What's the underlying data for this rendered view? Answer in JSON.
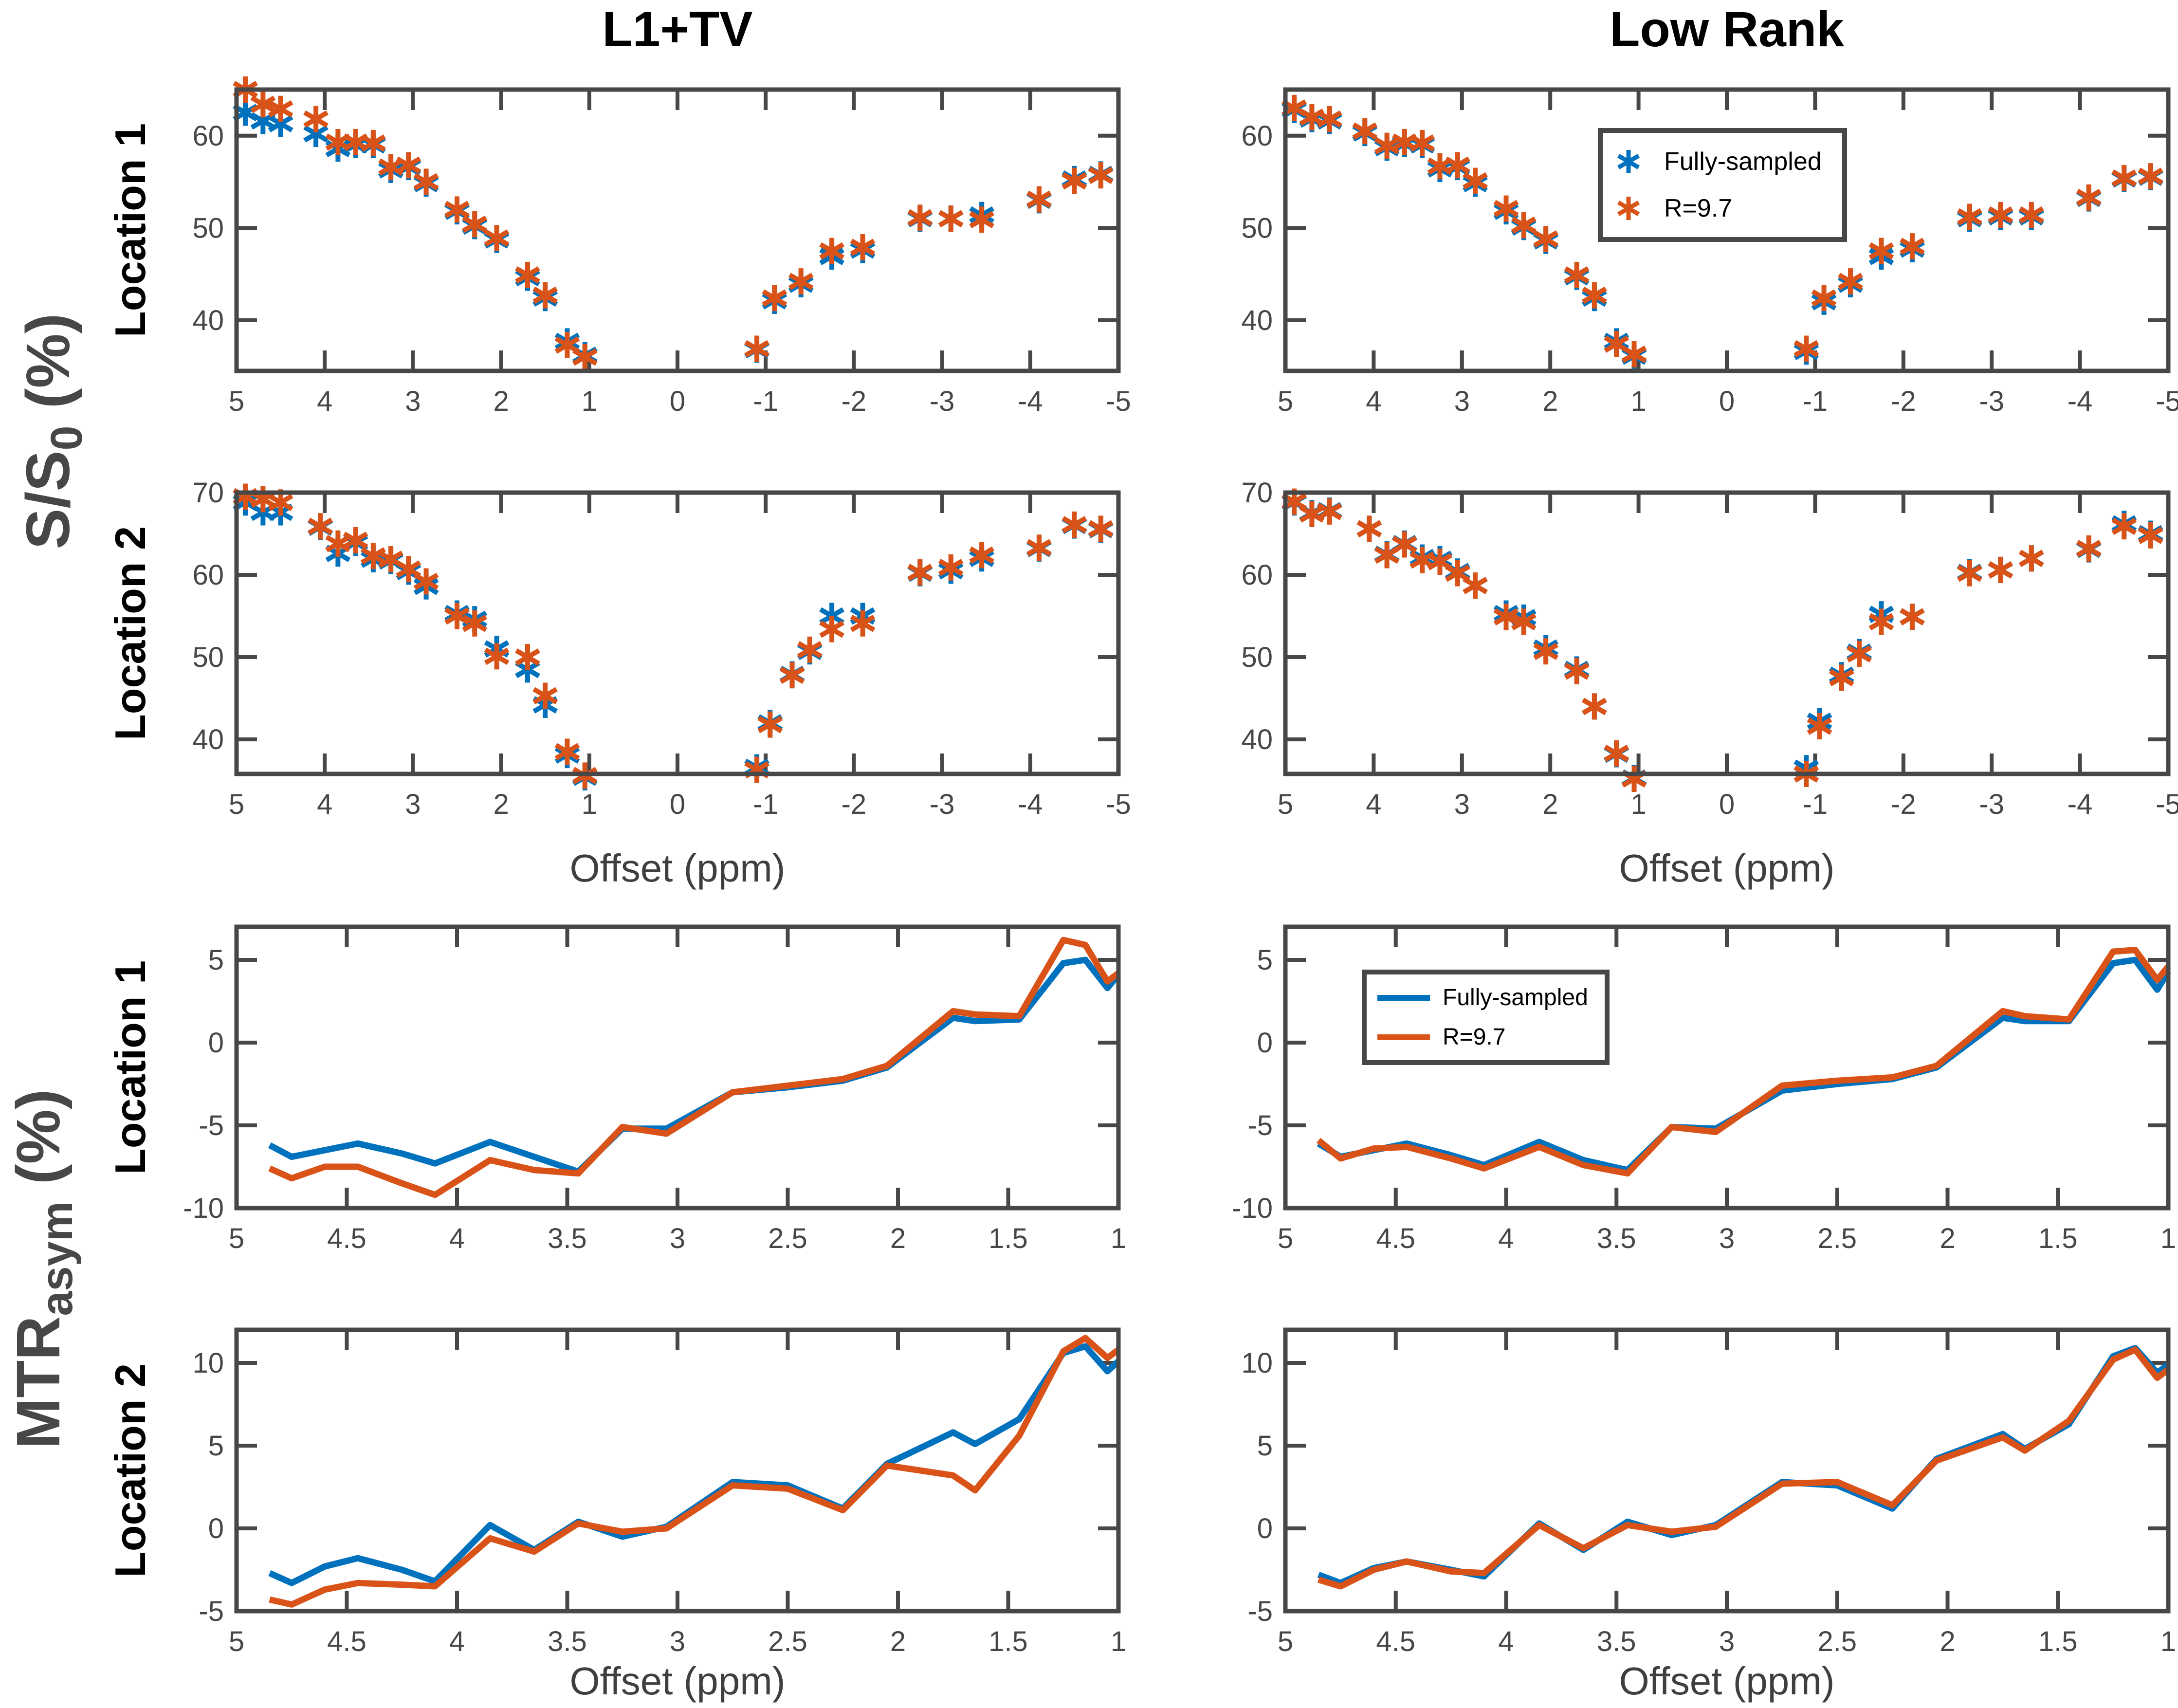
{
  "titles": {
    "left": "L1+TV",
    "right": "Low Rank"
  },
  "row_labels": {
    "loc1": "Location 1",
    "loc2": "Location 2"
  },
  "group_labels": {
    "signal": {
      "pre": "S/S",
      "sub": "0",
      "post": " (%)"
    },
    "mtr": {
      "pre": "MTR",
      "sub": "asym",
      "post": " (%)"
    }
  },
  "xlabel": "Offset (ppm)",
  "legend": {
    "items": [
      {
        "label": "Fully-sampled",
        "color": "blue"
      },
      {
        "label": "R=9.7",
        "color": "orange"
      }
    ]
  },
  "colors": {
    "blue": "#0072BD",
    "orange": "#D95319",
    "axis": "#474747",
    "text": "#000000",
    "background": "#FFFFFF"
  },
  "chart_data": [
    {
      "id": "zspec-l1tv-loc1",
      "panel": "L1+TV",
      "location": "Location 1",
      "type": "scatter",
      "ylabel": "S/S0 (%)",
      "xlim": [
        5,
        -5
      ],
      "ylim": [
        34.5,
        65
      ],
      "xticks": [
        5,
        4,
        3,
        2,
        1,
        0,
        -1,
        -2,
        -3,
        -4,
        -5
      ],
      "xtick_labels": [
        "5",
        "4",
        "3",
        "2",
        "1",
        "0",
        "-1",
        "-2",
        "-3",
        "-4",
        "-5"
      ],
      "yticks": [
        40,
        50,
        60
      ],
      "ytick_labels": [
        "40",
        "50",
        "60"
      ],
      "x": [
        4.9,
        4.7,
        4.5,
        4.1,
        3.85,
        3.65,
        3.45,
        3.25,
        3.05,
        2.85,
        2.5,
        2.3,
        2.05,
        1.7,
        1.5,
        1.25,
        1.05,
        -0.9,
        -1.1,
        -1.4,
        -1.75,
        -2.1,
        -2.75,
        -3.1,
        -3.45,
        -4.1,
        -4.5,
        -4.8
      ],
      "series": [
        {
          "name": "Fully-sampled",
          "color": "blue",
          "values": [
            62.5,
            61.6,
            61.3,
            60.2,
            58.6,
            59.0,
            59.0,
            56.3,
            56.6,
            54.8,
            51.8,
            50.2,
            48.7,
            44.6,
            42.4,
            37.7,
            36.2,
            36.8,
            42.1,
            43.9,
            46.9,
            47.6,
            51.0,
            51.0,
            51.4,
            53.0,
            55.3,
            55.8
          ]
        },
        {
          "name": "R=9.7",
          "color": "orange",
          "values": [
            65.0,
            63.4,
            62.9,
            61.8,
            59.3,
            59.3,
            59.2,
            56.6,
            56.8,
            55.0,
            52.0,
            50.4,
            48.9,
            44.9,
            42.7,
            37.3,
            36.0,
            36.9,
            42.4,
            44.2,
            47.5,
            47.9,
            51.1,
            51.0,
            50.9,
            53.1,
            55.1,
            55.7
          ]
        }
      ]
    },
    {
      "id": "zspec-lowrank-loc1",
      "panel": "Low Rank",
      "location": "Location 1",
      "type": "scatter",
      "ylabel": "S/S0 (%)",
      "xlim": [
        5,
        -5
      ],
      "ylim": [
        34.5,
        65
      ],
      "xticks": [
        5,
        4,
        3,
        2,
        1,
        0,
        -1,
        -2,
        -3,
        -4,
        -5
      ],
      "xtick_labels": [
        "5",
        "4",
        "3",
        "2",
        "1",
        "0",
        "-1",
        "-2",
        "-3",
        "-4",
        "-5"
      ],
      "yticks": [
        40,
        50,
        60
      ],
      "ytick_labels": [
        "40",
        "50",
        "60"
      ],
      "x": [
        4.9,
        4.7,
        4.5,
        4.1,
        3.85,
        3.65,
        3.45,
        3.25,
        3.05,
        2.85,
        2.5,
        2.3,
        2.05,
        1.7,
        1.5,
        1.25,
        1.05,
        -0.9,
        -1.1,
        -1.4,
        -1.75,
        -2.1,
        -2.75,
        -3.1,
        -3.45,
        -4.1,
        -4.5,
        -4.8
      ],
      "series": [
        {
          "name": "Fully-sampled",
          "color": "blue",
          "values": [
            62.8,
            61.8,
            61.6,
            60.3,
            58.7,
            59.1,
            59.0,
            56.4,
            56.6,
            54.8,
            51.8,
            50.1,
            48.6,
            44.7,
            42.4,
            37.7,
            36.1,
            36.6,
            42.0,
            43.9,
            46.9,
            47.7,
            51.0,
            51.2,
            51.2,
            53.2,
            55.3,
            55.5
          ]
        },
        {
          "name": "R=9.7",
          "color": "orange",
          "values": [
            63.0,
            62.0,
            61.8,
            60.5,
            58.9,
            59.3,
            59.2,
            56.7,
            56.8,
            55.1,
            52.1,
            50.3,
            48.8,
            44.9,
            42.7,
            37.4,
            36.3,
            36.9,
            42.4,
            44.2,
            47.5,
            48.0,
            51.2,
            51.4,
            51.4,
            53.3,
            55.4,
            55.6
          ]
        }
      ]
    },
    {
      "id": "zspec-l1tv-loc2",
      "panel": "L1+TV",
      "location": "Location 2",
      "type": "scatter",
      "ylabel": "S/S0 (%)",
      "xlabel": "Offset (ppm)",
      "xlim": [
        5,
        -5
      ],
      "ylim": [
        35.8,
        70
      ],
      "xticks": [
        5,
        4,
        3,
        2,
        1,
        0,
        -1,
        -2,
        -3,
        -4,
        -5
      ],
      "xtick_labels": [
        "5",
        "4",
        "3",
        "2",
        "1",
        "0",
        "-1",
        "-2",
        "-3",
        "-4",
        "-5"
      ],
      "yticks": [
        40,
        50,
        60,
        70
      ],
      "ytick_labels": [
        "40",
        "50",
        "60",
        "70"
      ],
      "x": [
        4.9,
        4.7,
        4.5,
        4.05,
        3.85,
        3.65,
        3.45,
        3.25,
        3.05,
        2.85,
        2.5,
        2.3,
        2.05,
        1.7,
        1.5,
        1.25,
        1.05,
        -0.9,
        -1.05,
        -1.3,
        -1.5,
        -1.75,
        -2.1,
        -2.75,
        -3.1,
        -3.45,
        -4.1,
        -4.5,
        -4.8
      ],
      "series": [
        {
          "name": "Fully-sampled",
          "color": "blue",
          "values": [
            68.8,
            67.6,
            67.6,
            65.8,
            62.6,
            63.9,
            61.9,
            61.7,
            60.4,
            58.6,
            55.3,
            54.6,
            51.0,
            48.5,
            44.2,
            38.1,
            35.4,
            36.6,
            42.0,
            47.9,
            50.7,
            55.0,
            55.0,
            60.2,
            60.5,
            62.0,
            63.2,
            66.0,
            65.5
          ]
        },
        {
          "name": "R=9.7",
          "color": "orange",
          "values": [
            69.5,
            69.2,
            68.8,
            65.9,
            63.8,
            64.2,
            62.3,
            61.9,
            60.7,
            59.2,
            55.0,
            54.1,
            50.1,
            50.0,
            45.3,
            38.5,
            35.6,
            36.3,
            41.8,
            47.8,
            50.9,
            53.4,
            54.1,
            60.3,
            60.9,
            62.4,
            63.3,
            66.1,
            65.6
          ]
        }
      ]
    },
    {
      "id": "zspec-lowrank-loc2",
      "panel": "Low Rank",
      "location": "Location 2",
      "type": "scatter",
      "ylabel": "S/S0 (%)",
      "xlabel": "Offset (ppm)",
      "xlim": [
        5,
        -5
      ],
      "ylim": [
        35.8,
        70
      ],
      "xticks": [
        5,
        4,
        3,
        2,
        1,
        0,
        -1,
        -2,
        -3,
        -4,
        -5
      ],
      "xtick_labels": [
        "5",
        "4",
        "3",
        "2",
        "1",
        "0",
        "-1",
        "-2",
        "-3",
        "-4",
        "-5"
      ],
      "yticks": [
        40,
        50,
        60,
        70
      ],
      "ytick_labels": [
        "40",
        "50",
        "60",
        "70"
      ],
      "x": [
        4.9,
        4.7,
        4.5,
        4.05,
        3.85,
        3.65,
        3.45,
        3.25,
        3.05,
        2.85,
        2.5,
        2.3,
        2.05,
        1.7,
        1.5,
        1.25,
        1.05,
        -0.9,
        -1.05,
        -1.3,
        -1.5,
        -1.75,
        -2.1,
        -2.75,
        -3.1,
        -3.45,
        -4.1,
        -4.5,
        -4.8
      ],
      "series": [
        {
          "name": "Fully-sampled",
          "color": "blue",
          "values": [
            68.8,
            67.5,
            67.8,
            65.6,
            62.5,
            63.8,
            62.1,
            61.9,
            60.4,
            58.7,
            55.3,
            54.8,
            51.1,
            48.5,
            44.0,
            38.2,
            35.3,
            36.5,
            42.2,
            47.8,
            50.6,
            55.2,
            54.9,
            60.3,
            60.6,
            62.0,
            63.1,
            66.2,
            65.0
          ]
        },
        {
          "name": "R=9.7",
          "color": "orange",
          "values": [
            68.9,
            67.4,
            67.7,
            65.6,
            62.4,
            63.7,
            61.8,
            61.6,
            60.2,
            58.7,
            54.9,
            54.3,
            50.7,
            48.3,
            44.0,
            38.3,
            35.2,
            35.8,
            41.6,
            47.5,
            50.4,
            54.3,
            54.9,
            60.2,
            60.6,
            62.0,
            63.2,
            65.9,
            64.8
          ]
        }
      ]
    },
    {
      "id": "mtr-l1tv-loc1",
      "panel": "L1+TV",
      "location": "Location 1",
      "type": "line",
      "ylabel": "MTRasym (%)",
      "xlim": [
        5,
        1
      ],
      "ylim": [
        -10,
        7
      ],
      "xticks": [
        5,
        4.5,
        4,
        3.5,
        3,
        2.5,
        2,
        1.5,
        1
      ],
      "xtick_labels": [
        "5",
        "4.5",
        "4",
        "3.5",
        "3",
        "2.5",
        "2",
        "1.5",
        "1"
      ],
      "yticks": [
        -10,
        -5,
        0,
        5
      ],
      "ytick_labels": [
        "-10",
        "-5",
        "0",
        "5"
      ],
      "x": [
        4.85,
        4.75,
        4.6,
        4.45,
        4.25,
        4.1,
        3.85,
        3.65,
        3.45,
        3.25,
        3.05,
        2.75,
        2.5,
        2.25,
        2.05,
        1.75,
        1.65,
        1.45,
        1.25,
        1.15,
        1.05,
        1.0
      ],
      "series": [
        {
          "name": "Fully-sampled",
          "color": "blue",
          "values": [
            -6.2,
            -6.9,
            -6.5,
            -6.1,
            -6.7,
            -7.3,
            -6.0,
            -6.9,
            -7.8,
            -5.2,
            -5.2,
            -3.0,
            -2.7,
            -2.3,
            -1.5,
            1.5,
            1.3,
            1.4,
            4.8,
            5.0,
            3.3,
            4.1
          ]
        },
        {
          "name": "R=9.7",
          "color": "orange",
          "values": [
            -7.6,
            -8.2,
            -7.5,
            -7.5,
            -8.5,
            -9.2,
            -7.1,
            -7.7,
            -7.9,
            -5.1,
            -5.5,
            -3.0,
            -2.6,
            -2.2,
            -1.4,
            1.9,
            1.7,
            1.6,
            6.2,
            5.9,
            3.7,
            4.2
          ]
        }
      ]
    },
    {
      "id": "mtr-lowrank-loc1",
      "panel": "Low Rank",
      "location": "Location 1",
      "type": "line",
      "ylabel": "MTRasym (%)",
      "xlim": [
        5,
        1
      ],
      "ylim": [
        -10,
        7
      ],
      "xticks": [
        5,
        4.5,
        4,
        3.5,
        3,
        2.5,
        2,
        1.5,
        1
      ],
      "xtick_labels": [
        "5",
        "4.5",
        "4",
        "3.5",
        "3",
        "2.5",
        "2",
        "1.5",
        "1"
      ],
      "yticks": [
        -10,
        -5,
        0,
        5
      ],
      "ytick_labels": [
        "-10",
        "-5",
        "0",
        "5"
      ],
      "x": [
        4.85,
        4.75,
        4.6,
        4.45,
        4.25,
        4.1,
        3.85,
        3.65,
        3.45,
        3.25,
        3.05,
        2.75,
        2.5,
        2.25,
        2.05,
        1.75,
        1.65,
        1.45,
        1.25,
        1.15,
        1.05,
        1.0
      ],
      "series": [
        {
          "name": "Fully-sampled",
          "color": "blue",
          "values": [
            -6.1,
            -6.9,
            -6.5,
            -6.1,
            -6.8,
            -7.4,
            -6.0,
            -7.1,
            -7.7,
            -5.1,
            -5.2,
            -2.9,
            -2.5,
            -2.2,
            -1.5,
            1.5,
            1.3,
            1.3,
            4.8,
            5.0,
            3.2,
            4.3
          ]
        },
        {
          "name": "R=9.7",
          "color": "orange",
          "values": [
            -5.9,
            -7.0,
            -6.4,
            -6.3,
            -7.0,
            -7.6,
            -6.3,
            -7.4,
            -7.9,
            -5.1,
            -5.4,
            -2.6,
            -2.3,
            -2.1,
            -1.4,
            1.9,
            1.6,
            1.4,
            5.5,
            5.6,
            3.8,
            4.6
          ]
        }
      ]
    },
    {
      "id": "mtr-l1tv-loc2",
      "panel": "L1+TV",
      "location": "Location 2",
      "type": "line",
      "ylabel": "MTRasym (%)",
      "xlabel": "Offset (ppm)",
      "xlim": [
        5,
        1
      ],
      "ylim": [
        -5,
        12
      ],
      "xticks": [
        5,
        4.5,
        4,
        3.5,
        3,
        2.5,
        2,
        1.5,
        1
      ],
      "xtick_labels": [
        "5",
        "4.5",
        "4",
        "3.5",
        "3",
        "2.5",
        "2",
        "1.5",
        "1"
      ],
      "yticks": [
        -5,
        0,
        5,
        10
      ],
      "ytick_labels": [
        "-5",
        "0",
        "5",
        "10"
      ],
      "x": [
        4.85,
        4.75,
        4.6,
        4.45,
        4.25,
        4.1,
        3.85,
        3.65,
        3.45,
        3.25,
        3.05,
        2.75,
        2.5,
        2.25,
        2.05,
        1.75,
        1.65,
        1.45,
        1.25,
        1.15,
        1.05,
        1.0
      ],
      "series": [
        {
          "name": "Fully-sampled",
          "color": "blue",
          "values": [
            -2.7,
            -3.3,
            -2.3,
            -1.8,
            -2.5,
            -3.2,
            0.2,
            -1.3,
            0.4,
            -0.5,
            0.1,
            2.8,
            2.6,
            1.2,
            3.9,
            5.8,
            5.1,
            6.6,
            10.6,
            11.0,
            9.5,
            10.1
          ]
        },
        {
          "name": "R=9.7",
          "color": "orange",
          "values": [
            -4.3,
            -4.6,
            -3.7,
            -3.3,
            -3.4,
            -3.5,
            -0.6,
            -1.4,
            0.3,
            -0.2,
            0.0,
            2.6,
            2.4,
            1.1,
            3.8,
            3.2,
            2.3,
            5.6,
            10.7,
            11.5,
            10.3,
            10.8
          ]
        }
      ]
    },
    {
      "id": "mtr-lowrank-loc2",
      "panel": "Low Rank",
      "location": "Location 2",
      "type": "line",
      "ylabel": "MTRasym (%)",
      "xlabel": "Offset (ppm)",
      "xlim": [
        5,
        1
      ],
      "ylim": [
        -5,
        12
      ],
      "xticks": [
        5,
        4.5,
        4,
        3.5,
        3,
        2.5,
        2,
        1.5,
        1
      ],
      "xtick_labels": [
        "5",
        "4.5",
        "4",
        "3.5",
        "3",
        "2.5",
        "2",
        "1.5",
        "1"
      ],
      "yticks": [
        -5,
        0,
        5,
        10
      ],
      "ytick_labels": [
        "-5",
        "0",
        "5",
        "10"
      ],
      "x": [
        4.85,
        4.75,
        4.6,
        4.45,
        4.25,
        4.1,
        3.85,
        3.65,
        3.45,
        3.25,
        3.05,
        2.75,
        2.5,
        2.25,
        2.05,
        1.75,
        1.65,
        1.45,
        1.25,
        1.15,
        1.05,
        1.0
      ],
      "series": [
        {
          "name": "Fully-sampled",
          "color": "blue",
          "values": [
            -2.8,
            -3.3,
            -2.4,
            -2.0,
            -2.5,
            -2.9,
            0.3,
            -1.3,
            0.4,
            -0.4,
            0.2,
            2.8,
            2.6,
            1.2,
            4.2,
            5.7,
            4.8,
            6.3,
            10.4,
            10.9,
            9.4,
            9.9
          ]
        },
        {
          "name": "R=9.7",
          "color": "orange",
          "values": [
            -3.1,
            -3.5,
            -2.5,
            -2.0,
            -2.6,
            -2.7,
            0.2,
            -1.2,
            0.2,
            -0.2,
            0.1,
            2.7,
            2.8,
            1.4,
            4.1,
            5.5,
            4.7,
            6.5,
            10.2,
            10.8,
            9.1,
            9.6
          ]
        }
      ]
    }
  ]
}
